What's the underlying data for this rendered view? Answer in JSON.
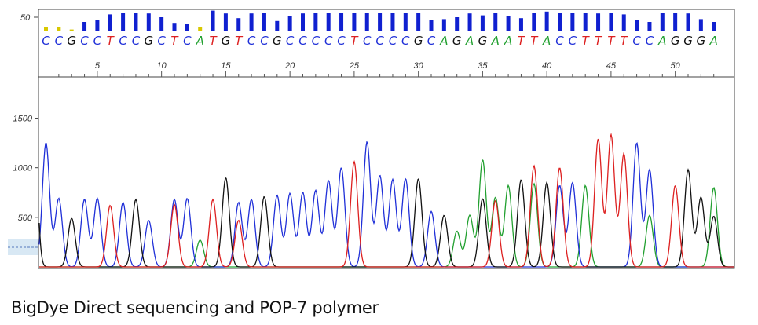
{
  "chart_data": {
    "type": "line",
    "title": "",
    "xlabel": "",
    "ylabel": "",
    "ylim": [
      0,
      1900
    ],
    "grid": false,
    "y_ticks": [
      500,
      1000,
      1500
    ],
    "base_position_ticks": [
      5,
      10,
      15,
      20,
      25,
      30,
      35,
      40,
      45,
      50
    ],
    "qv_scale_label": "50",
    "bases": [
      "C",
      "C",
      "G",
      "C",
      "C",
      "T",
      "C",
      "C",
      "G",
      "C",
      "T",
      "C",
      "A",
      "T",
      "G",
      "T",
      "C",
      "C",
      "G",
      "C",
      "C",
      "C",
      "C",
      "C",
      "T",
      "C",
      "C",
      "C",
      "C",
      "G",
      "C",
      "A",
      "G",
      "A",
      "G",
      "A",
      "A",
      "T",
      "T",
      "A",
      "C",
      "C",
      "T",
      "T",
      "T",
      "T",
      "C",
      "C",
      "A",
      "G",
      "G",
      "G",
      "A"
    ],
    "base_positions": [
      1,
      2,
      3,
      4,
      5,
      6,
      7,
      8,
      9,
      10,
      11,
      12,
      13,
      14,
      15,
      16,
      17,
      18,
      19,
      20,
      21,
      22,
      23,
      24,
      25,
      26,
      27,
      28,
      29,
      30,
      31,
      32,
      33,
      34,
      35,
      36,
      37,
      38,
      39,
      40,
      41,
      42,
      43,
      44,
      45,
      46,
      47,
      48,
      49,
      50,
      51,
      52,
      53
    ],
    "quality_bars": [
      5,
      5,
      2,
      10,
      12,
      18,
      20,
      20,
      19,
      15,
      9,
      8,
      5,
      22,
      19,
      14,
      19,
      20,
      11,
      16,
      19,
      20,
      20,
      20,
      20,
      20,
      20,
      20,
      20,
      20,
      12,
      13,
      15,
      19,
      17,
      20,
      16,
      14,
      20,
      21,
      20,
      20,
      20,
      19,
      20,
      18,
      12,
      10,
      20,
      20,
      19,
      13,
      10
    ],
    "series": [
      {
        "name": "A",
        "color": "#22a030",
        "peaks": [
          [
            13,
            270
          ],
          [
            33,
            360
          ],
          [
            34,
            520
          ],
          [
            35,
            1080
          ],
          [
            36,
            700
          ],
          [
            37,
            820
          ],
          [
            39,
            840
          ],
          [
            43,
            820
          ],
          [
            48,
            520
          ],
          [
            53,
            800
          ]
        ]
      },
      {
        "name": "C",
        "color": "#2030d8",
        "peaks": [
          [
            1,
            1250
          ],
          [
            2,
            690
          ],
          [
            4,
            680
          ],
          [
            5,
            690
          ],
          [
            7,
            650
          ],
          [
            9,
            470
          ],
          [
            11,
            680
          ],
          [
            12,
            690
          ],
          [
            16,
            650
          ],
          [
            17,
            680
          ],
          [
            19,
            720
          ],
          [
            20,
            740
          ],
          [
            21,
            750
          ],
          [
            22,
            770
          ],
          [
            23,
            870
          ],
          [
            24,
            1000
          ],
          [
            26,
            1260
          ],
          [
            27,
            920
          ],
          [
            28,
            880
          ],
          [
            29,
            890
          ],
          [
            31,
            560
          ],
          [
            41,
            820
          ],
          [
            42,
            850
          ],
          [
            47,
            1250
          ],
          [
            48,
            980
          ]
        ]
      },
      {
        "name": "G",
        "color": "#111111",
        "peaks": [
          [
            0,
            1900
          ],
          [
            3,
            490
          ],
          [
            8,
            680
          ],
          [
            15,
            900
          ],
          [
            18,
            710
          ],
          [
            30,
            890
          ],
          [
            32,
            520
          ],
          [
            35,
            690
          ],
          [
            38,
            880
          ],
          [
            40,
            850
          ],
          [
            51,
            980
          ],
          [
            52,
            700
          ],
          [
            53,
            510
          ]
        ]
      },
      {
        "name": "T",
        "color": "#dd2020",
        "peaks": [
          [
            6,
            620
          ],
          [
            11,
            630
          ],
          [
            14,
            680
          ],
          [
            16,
            470
          ],
          [
            25,
            1060
          ],
          [
            36,
            670
          ],
          [
            39,
            1020
          ],
          [
            41,
            1000
          ],
          [
            44,
            1290
          ],
          [
            45,
            1330
          ],
          [
            46,
            1140
          ],
          [
            50,
            820
          ]
        ]
      }
    ]
  },
  "caption": "BigDye Direct sequencing and POP-7 polymer"
}
